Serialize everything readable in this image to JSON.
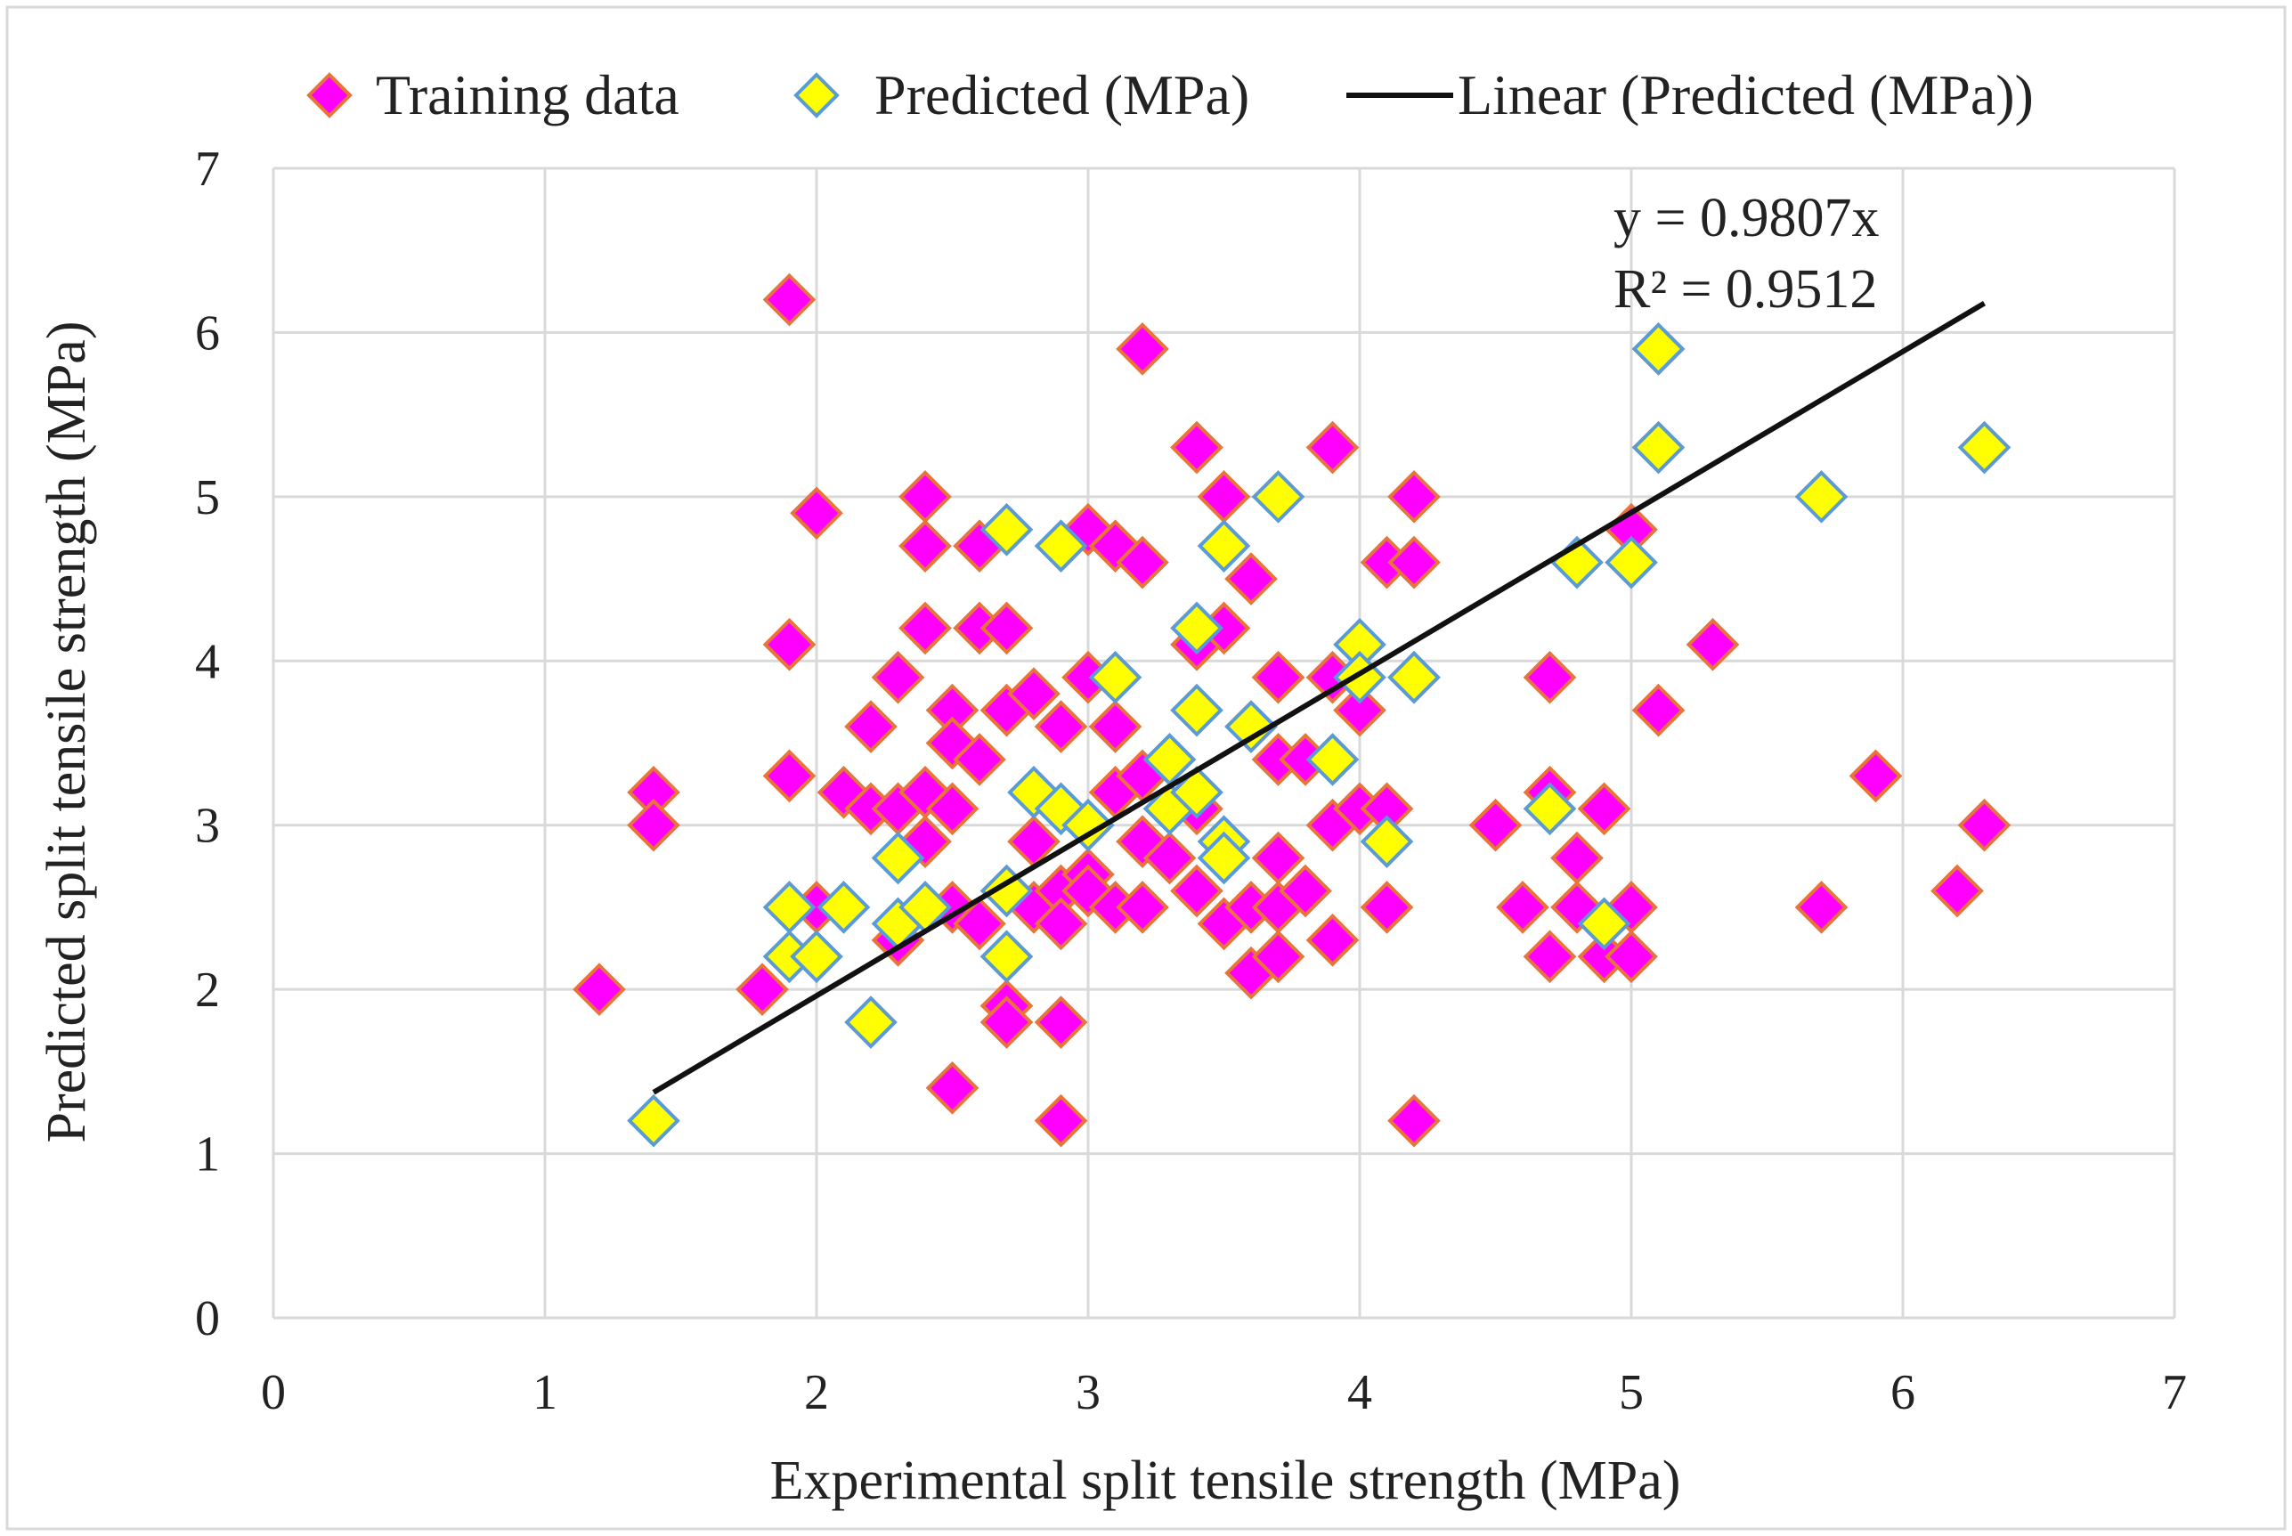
{
  "chart_data": {
    "type": "scatter",
    "xlabel": "Experimental split tensile strength (MPa)",
    "ylabel": "Predicted split tensile strength (MPa)",
    "xlim": [
      0,
      7
    ],
    "ylim": [
      0,
      7
    ],
    "x_ticks": [
      "0",
      "1",
      "2",
      "3",
      "4",
      "5",
      "6",
      "7"
    ],
    "y_ticks": [
      "0",
      "1",
      "2",
      "3",
      "4",
      "5",
      "6",
      "7"
    ],
    "grid": true,
    "legend_position": "top",
    "colors": {
      "training_fill": "#ff00ff",
      "training_edge": "#e8743b",
      "predicted_fill": "#ffff00",
      "predicted_edge": "#5b9bd5",
      "trendline": "#111111",
      "grid": "#d9d9d9"
    },
    "legend": [
      {
        "label": "Training data",
        "marker": "diamond-magenta"
      },
      {
        "label": "Predicted (MPa)",
        "marker": "diamond-yellow"
      },
      {
        "label": "Linear (Predicted (MPa))",
        "marker": "line-black"
      }
    ],
    "annotations": {
      "equation": "y = 0.9807x",
      "r_squared": "R² = 0.9512"
    },
    "trendline": {
      "slope": 0.9807,
      "intercept": 0,
      "x_range": [
        1.4,
        6.3
      ]
    },
    "series": [
      {
        "name": "Training data",
        "points": [
          [
            1.2,
            2.0
          ],
          [
            1.4,
            3.2
          ],
          [
            1.4,
            3.0
          ],
          [
            1.8,
            2.0
          ],
          [
            1.9,
            6.2
          ],
          [
            1.9,
            4.1
          ],
          [
            1.9,
            3.3
          ],
          [
            2.0,
            4.9
          ],
          [
            2.0,
            2.5
          ],
          [
            2.1,
            3.2
          ],
          [
            2.2,
            3.6
          ],
          [
            2.2,
            3.1
          ],
          [
            2.3,
            3.9
          ],
          [
            2.3,
            3.1
          ],
          [
            2.3,
            2.3
          ],
          [
            2.4,
            5.0
          ],
          [
            2.4,
            4.7
          ],
          [
            2.4,
            4.2
          ],
          [
            2.4,
            3.2
          ],
          [
            2.4,
            2.9
          ],
          [
            2.5,
            3.7
          ],
          [
            2.5,
            3.5
          ],
          [
            2.5,
            3.1
          ],
          [
            2.5,
            2.5
          ],
          [
            2.5,
            1.4
          ],
          [
            2.6,
            4.7
          ],
          [
            2.6,
            4.2
          ],
          [
            2.6,
            3.4
          ],
          [
            2.6,
            2.4
          ],
          [
            2.7,
            4.2
          ],
          [
            2.7,
            3.7
          ],
          [
            2.7,
            1.9
          ],
          [
            2.7,
            1.8
          ],
          [
            2.8,
            3.8
          ],
          [
            2.8,
            2.9
          ],
          [
            2.8,
            2.5
          ],
          [
            2.9,
            3.6
          ],
          [
            2.9,
            2.6
          ],
          [
            2.9,
            2.4
          ],
          [
            2.9,
            1.8
          ],
          [
            2.9,
            1.2
          ],
          [
            3.0,
            4.8
          ],
          [
            3.0,
            3.9
          ],
          [
            3.0,
            2.7
          ],
          [
            3.0,
            2.6
          ],
          [
            3.1,
            4.7
          ],
          [
            3.1,
            3.6
          ],
          [
            3.1,
            3.2
          ],
          [
            3.1,
            2.5
          ],
          [
            3.2,
            5.9
          ],
          [
            3.2,
            4.6
          ],
          [
            3.2,
            3.3
          ],
          [
            3.2,
            2.9
          ],
          [
            3.2,
            2.5
          ],
          [
            3.3,
            3.4
          ],
          [
            3.3,
            2.8
          ],
          [
            3.4,
            5.3
          ],
          [
            3.4,
            4.1
          ],
          [
            3.4,
            3.1
          ],
          [
            3.4,
            2.6
          ],
          [
            3.5,
            5.0
          ],
          [
            3.5,
            4.2
          ],
          [
            3.5,
            2.4
          ],
          [
            3.6,
            4.5
          ],
          [
            3.6,
            3.6
          ],
          [
            3.6,
            2.5
          ],
          [
            3.6,
            2.1
          ],
          [
            3.7,
            3.9
          ],
          [
            3.7,
            3.4
          ],
          [
            3.7,
            2.8
          ],
          [
            3.7,
            2.5
          ],
          [
            3.7,
            2.2
          ],
          [
            3.8,
            3.4
          ],
          [
            3.8,
            2.6
          ],
          [
            3.9,
            5.3
          ],
          [
            3.9,
            3.9
          ],
          [
            3.9,
            3.0
          ],
          [
            3.9,
            2.3
          ],
          [
            4.0,
            3.7
          ],
          [
            4.0,
            3.1
          ],
          [
            4.1,
            4.6
          ],
          [
            4.1,
            3.1
          ],
          [
            4.1,
            2.5
          ],
          [
            4.2,
            5.0
          ],
          [
            4.2,
            4.6
          ],
          [
            4.2,
            3.9
          ],
          [
            4.2,
            1.2
          ],
          [
            4.5,
            3.0
          ],
          [
            4.6,
            2.5
          ],
          [
            4.7,
            3.9
          ],
          [
            4.7,
            3.2
          ],
          [
            4.7,
            2.2
          ],
          [
            4.8,
            2.8
          ],
          [
            4.8,
            2.5
          ],
          [
            4.9,
            3.1
          ],
          [
            4.9,
            2.2
          ],
          [
            5.0,
            4.8
          ],
          [
            5.0,
            2.5
          ],
          [
            5.0,
            2.2
          ],
          [
            5.1,
            5.9
          ],
          [
            5.1,
            3.7
          ],
          [
            5.3,
            4.1
          ],
          [
            5.7,
            2.5
          ],
          [
            5.9,
            3.3
          ],
          [
            6.2,
            2.6
          ],
          [
            6.3,
            3.0
          ]
        ]
      },
      {
        "name": "Predicted (MPa)",
        "points": [
          [
            1.4,
            1.2
          ],
          [
            1.9,
            2.5
          ],
          [
            1.9,
            2.2
          ],
          [
            2.0,
            2.2
          ],
          [
            2.1,
            2.5
          ],
          [
            2.2,
            1.8
          ],
          [
            2.3,
            2.8
          ],
          [
            2.3,
            2.4
          ],
          [
            2.4,
            2.5
          ],
          [
            2.7,
            4.8
          ],
          [
            2.7,
            2.6
          ],
          [
            2.7,
            2.2
          ],
          [
            2.8,
            3.2
          ],
          [
            2.9,
            4.7
          ],
          [
            2.9,
            3.1
          ],
          [
            3.0,
            3.0
          ],
          [
            3.1,
            3.9
          ],
          [
            3.3,
            3.4
          ],
          [
            3.3,
            3.1
          ],
          [
            3.4,
            4.2
          ],
          [
            3.4,
            3.7
          ],
          [
            3.4,
            3.2
          ],
          [
            3.5,
            4.7
          ],
          [
            3.5,
            2.9
          ],
          [
            3.5,
            2.8
          ],
          [
            3.6,
            3.6
          ],
          [
            3.7,
            5.0
          ],
          [
            3.9,
            3.4
          ],
          [
            4.0,
            4.1
          ],
          [
            4.0,
            3.9
          ],
          [
            4.1,
            2.9
          ],
          [
            4.2,
            3.9
          ],
          [
            4.7,
            3.1
          ],
          [
            4.8,
            4.6
          ],
          [
            4.9,
            2.4
          ],
          [
            5.0,
            4.6
          ],
          [
            5.1,
            5.9
          ],
          [
            5.1,
            5.3
          ],
          [
            5.7,
            5.0
          ],
          [
            6.3,
            5.3
          ]
        ]
      }
    ]
  }
}
